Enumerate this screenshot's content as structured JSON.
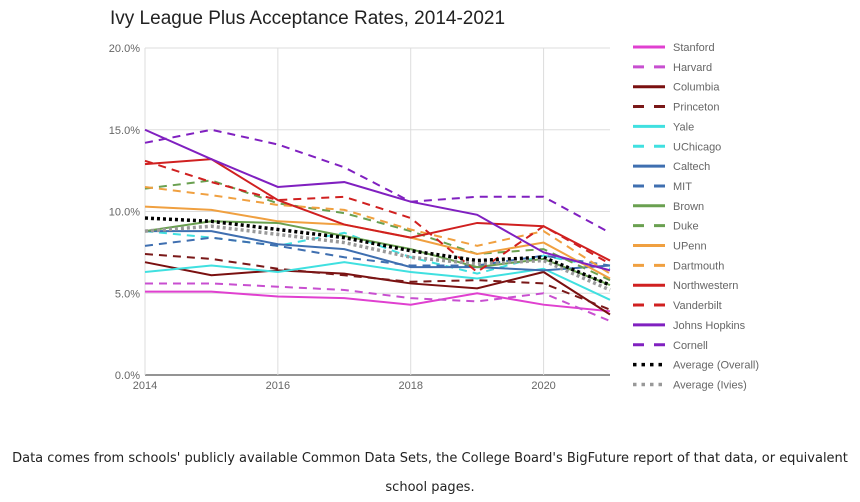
{
  "chart_data": {
    "type": "line",
    "title": "Ivy League Plus Acceptance Rates, 2014-2021",
    "xlabel": "",
    "ylabel": "",
    "x": [
      2014,
      2015,
      2016,
      2017,
      2018,
      2019,
      2020,
      2021
    ],
    "xticks": [
      "2014",
      "2016",
      "2018",
      "2020"
    ],
    "xtick_values": [
      2014,
      2016,
      2018,
      2020
    ],
    "yticks": [
      "0.0%",
      "5.0%",
      "10.0%",
      "15.0%",
      "20.0%"
    ],
    "ytick_values": [
      0,
      5,
      10,
      15,
      20
    ],
    "ylim": [
      0,
      20
    ],
    "xlim": [
      2014,
      2021
    ],
    "grid": true,
    "legend_position": "right",
    "series": [
      {
        "name": "Stanford",
        "color": "#e040d0",
        "style": "solid",
        "values": [
          5.1,
          5.1,
          4.8,
          4.7,
          4.3,
          5.0,
          4.3,
          3.9
        ]
      },
      {
        "name": "Harvard",
        "color": "#c84fd0",
        "style": "dashed",
        "values": [
          5.6,
          5.6,
          5.4,
          5.2,
          4.7,
          4.5,
          5.0,
          3.3
        ]
      },
      {
        "name": "Columbia",
        "color": "#7a1010",
        "style": "solid",
        "values": [
          6.9,
          6.1,
          6.4,
          6.2,
          5.6,
          5.3,
          6.3,
          3.7
        ]
      },
      {
        "name": "Princeton",
        "color": "#7a1818",
        "style": "dashed",
        "values": [
          7.4,
          7.1,
          6.5,
          6.1,
          5.7,
          5.8,
          5.6,
          4.0
        ]
      },
      {
        "name": "Yale",
        "color": "#40e0e0",
        "style": "solid",
        "values": [
          6.3,
          6.7,
          6.3,
          6.9,
          6.3,
          5.9,
          6.5,
          4.6
        ]
      },
      {
        "name": "UChicago",
        "color": "#40e0e0",
        "style": "dashed",
        "values": [
          8.8,
          8.4,
          7.9,
          8.7,
          7.2,
          6.2,
          7.3,
          6.5
        ]
      },
      {
        "name": "Caltech",
        "color": "#3f6fb0",
        "style": "solid",
        "values": [
          8.8,
          8.8,
          8.0,
          7.7,
          6.6,
          6.6,
          6.4,
          6.7
        ]
      },
      {
        "name": "MIT",
        "color": "#3f6fb0",
        "style": "dashed",
        "values": [
          7.9,
          8.4,
          7.9,
          7.2,
          6.7,
          6.7,
          7.3,
          6.7
        ]
      },
      {
        "name": "Brown",
        "color": "#6aa050",
        "style": "solid",
        "values": [
          8.8,
          9.4,
          9.3,
          8.5,
          7.7,
          6.6,
          7.1,
          5.5
        ]
      },
      {
        "name": "Duke",
        "color": "#6aa050",
        "style": "dashed",
        "values": [
          11.4,
          11.9,
          10.5,
          9.9,
          8.8,
          7.4,
          7.7,
          5.8
        ]
      },
      {
        "name": "UPenn",
        "color": "#f0a040",
        "style": "solid",
        "values": [
          10.3,
          10.1,
          9.4,
          9.2,
          8.4,
          7.4,
          8.1,
          5.9
        ]
      },
      {
        "name": "Dartmouth",
        "color": "#f0a040",
        "style": "dashed",
        "values": [
          11.5,
          11.0,
          10.4,
          10.1,
          8.9,
          7.9,
          8.8,
          6.2
        ]
      },
      {
        "name": "Northwestern",
        "color": "#d02020",
        "style": "solid",
        "values": [
          12.9,
          13.2,
          10.7,
          9.2,
          8.4,
          9.3,
          9.1,
          7.0
        ]
      },
      {
        "name": "Vanderbilt",
        "color": "#d02020",
        "style": "dashed",
        "values": [
          13.1,
          11.8,
          10.7,
          10.9,
          9.6,
          6.3,
          9.1,
          6.8
        ]
      },
      {
        "name": "Johns Hopkins",
        "color": "#8020c0",
        "style": "solid",
        "values": [
          15.0,
          13.2,
          11.5,
          11.8,
          10.6,
          9.8,
          7.5,
          6.4
        ]
      },
      {
        "name": "Cornell",
        "color": "#8020c0",
        "style": "dashed",
        "values": [
          14.2,
          15.0,
          14.1,
          12.7,
          10.6,
          10.9,
          10.9,
          8.7
        ]
      },
      {
        "name": "Average (Overall)",
        "color": "#000000",
        "style": "dotted",
        "values": [
          9.6,
          9.4,
          8.9,
          8.4,
          7.6,
          7.0,
          7.2,
          5.5
        ]
      },
      {
        "name": "Average (Ivies)",
        "color": "#999999",
        "style": "dotted",
        "values": [
          8.8,
          9.1,
          8.6,
          8.1,
          7.2,
          6.8,
          7.0,
          5.2
        ]
      }
    ]
  },
  "caption": "Data comes from schools' publicly available Common Data Sets, the College Board's BigFuture report of that data, or equivalent school pages."
}
